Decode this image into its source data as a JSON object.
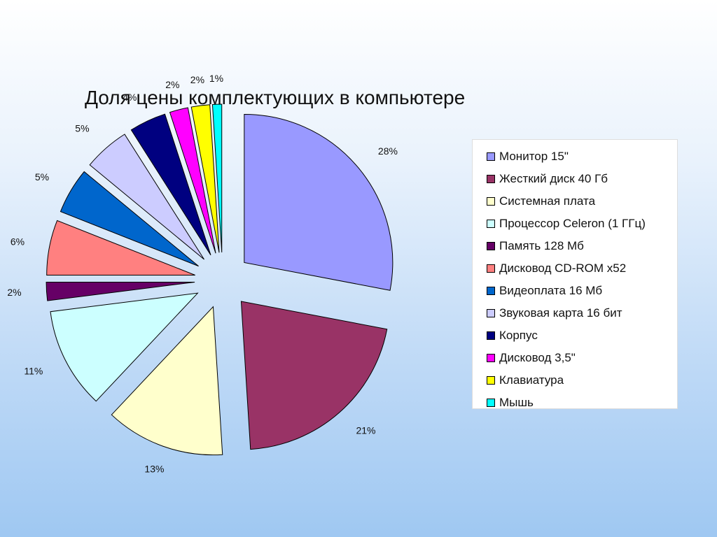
{
  "chart_data": {
    "type": "pie",
    "title": "Доля цены комплектующих в компьютере",
    "legend_position": "right",
    "exploded": true,
    "slices": [
      {
        "label": "Монитор 15\"",
        "value": 28,
        "value_label": "28%",
        "color": "#9999ff"
      },
      {
        "label": "Жесткий диск 40 Гб",
        "value": 21,
        "value_label": "21%",
        "color": "#993366"
      },
      {
        "label": "Системная плата",
        "value": 13,
        "value_label": "13%",
        "color": "#ffffcc"
      },
      {
        "label": "Процессор Celeron (1 ГГц)",
        "value": 11,
        "value_label": "11%",
        "color": "#ccffff"
      },
      {
        "label": "Память 128 Мб",
        "value": 2,
        "value_label": "2%",
        "color": "#660066"
      },
      {
        "label": "Дисковод CD-ROM x52",
        "value": 6,
        "value_label": "6%",
        "color": "#ff8080"
      },
      {
        "label": "Видеоплата 16 Мб",
        "value": 5,
        "value_label": "5%",
        "color": "#0066cc"
      },
      {
        "label": "Звуковая карта 16 бит",
        "value": 5,
        "value_label": "5%",
        "color": "#ccccff"
      },
      {
        "label": "Корпус",
        "value": 4,
        "value_label": "4%",
        "color": "#000080"
      },
      {
        "label": "Дисковод 3,5\"",
        "value": 2,
        "value_label": "2%",
        "color": "#ff00ff"
      },
      {
        "label": "Клавиатура",
        "value": 2,
        "value_label": "2%",
        "color": "#ffff00"
      },
      {
        "label": "Мышь",
        "value": 1,
        "value_label": "1%",
        "color": "#00ffff"
      }
    ]
  }
}
